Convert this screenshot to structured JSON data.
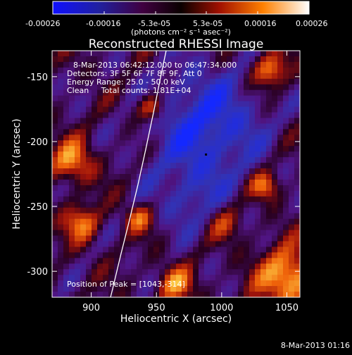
{
  "colors": {
    "background": "#000000",
    "foreground": "#ffffff",
    "limb_line": "#ffffff"
  },
  "chart_data": {
    "type": "heatmap",
    "title": "Reconstructed RHESSI Image",
    "xlabel": "Heliocentric X (arcsec)",
    "ylabel": "Heliocentric Y (arcsec)",
    "xlim": [
      870,
      1060
    ],
    "ylim": [
      -320,
      -130
    ],
    "x_ticks": [
      900,
      950,
      1000,
      1050
    ],
    "y_ticks": [
      -150,
      -200,
      -250,
      -300
    ],
    "colorbar": {
      "range": [
        -0.00026,
        0.00026
      ],
      "tick_labels": [
        "-0.00026",
        "-0.00016",
        "-5.3e-05",
        "5.3e-05",
        "0.00016",
        "0.00026"
      ],
      "units_label": "(photons cm⁻² s⁻¹ asec⁻²)"
    },
    "info_lines": [
      "8-Mar-2013 06:42:12.000 to 06:47:34.000",
      "Detectors: 3F 5F 6F 7F 8F 9F, Att 0",
      "Energy Range: 25.0 - 50.0 keV",
      "Clean     Total counts: 1.81E+04"
    ],
    "peak_label": "Position of Peak = [1043,-314]",
    "peak_position": [
      1043,
      -314
    ],
    "timestamp": "8-Mar-2013 01:16"
  }
}
